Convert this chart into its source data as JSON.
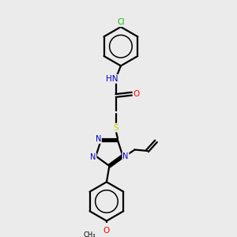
{
  "bg_color": "#ebebeb",
  "atom_colors": {
    "C": "#000000",
    "N": "#0000cc",
    "O": "#ff0000",
    "S": "#cccc00",
    "Cl": "#00bb00",
    "H": "#555555"
  },
  "bond_color": "#000000",
  "bond_lw": 1.6,
  "figsize": [
    3.0,
    3.0
  ],
  "dpi": 100
}
